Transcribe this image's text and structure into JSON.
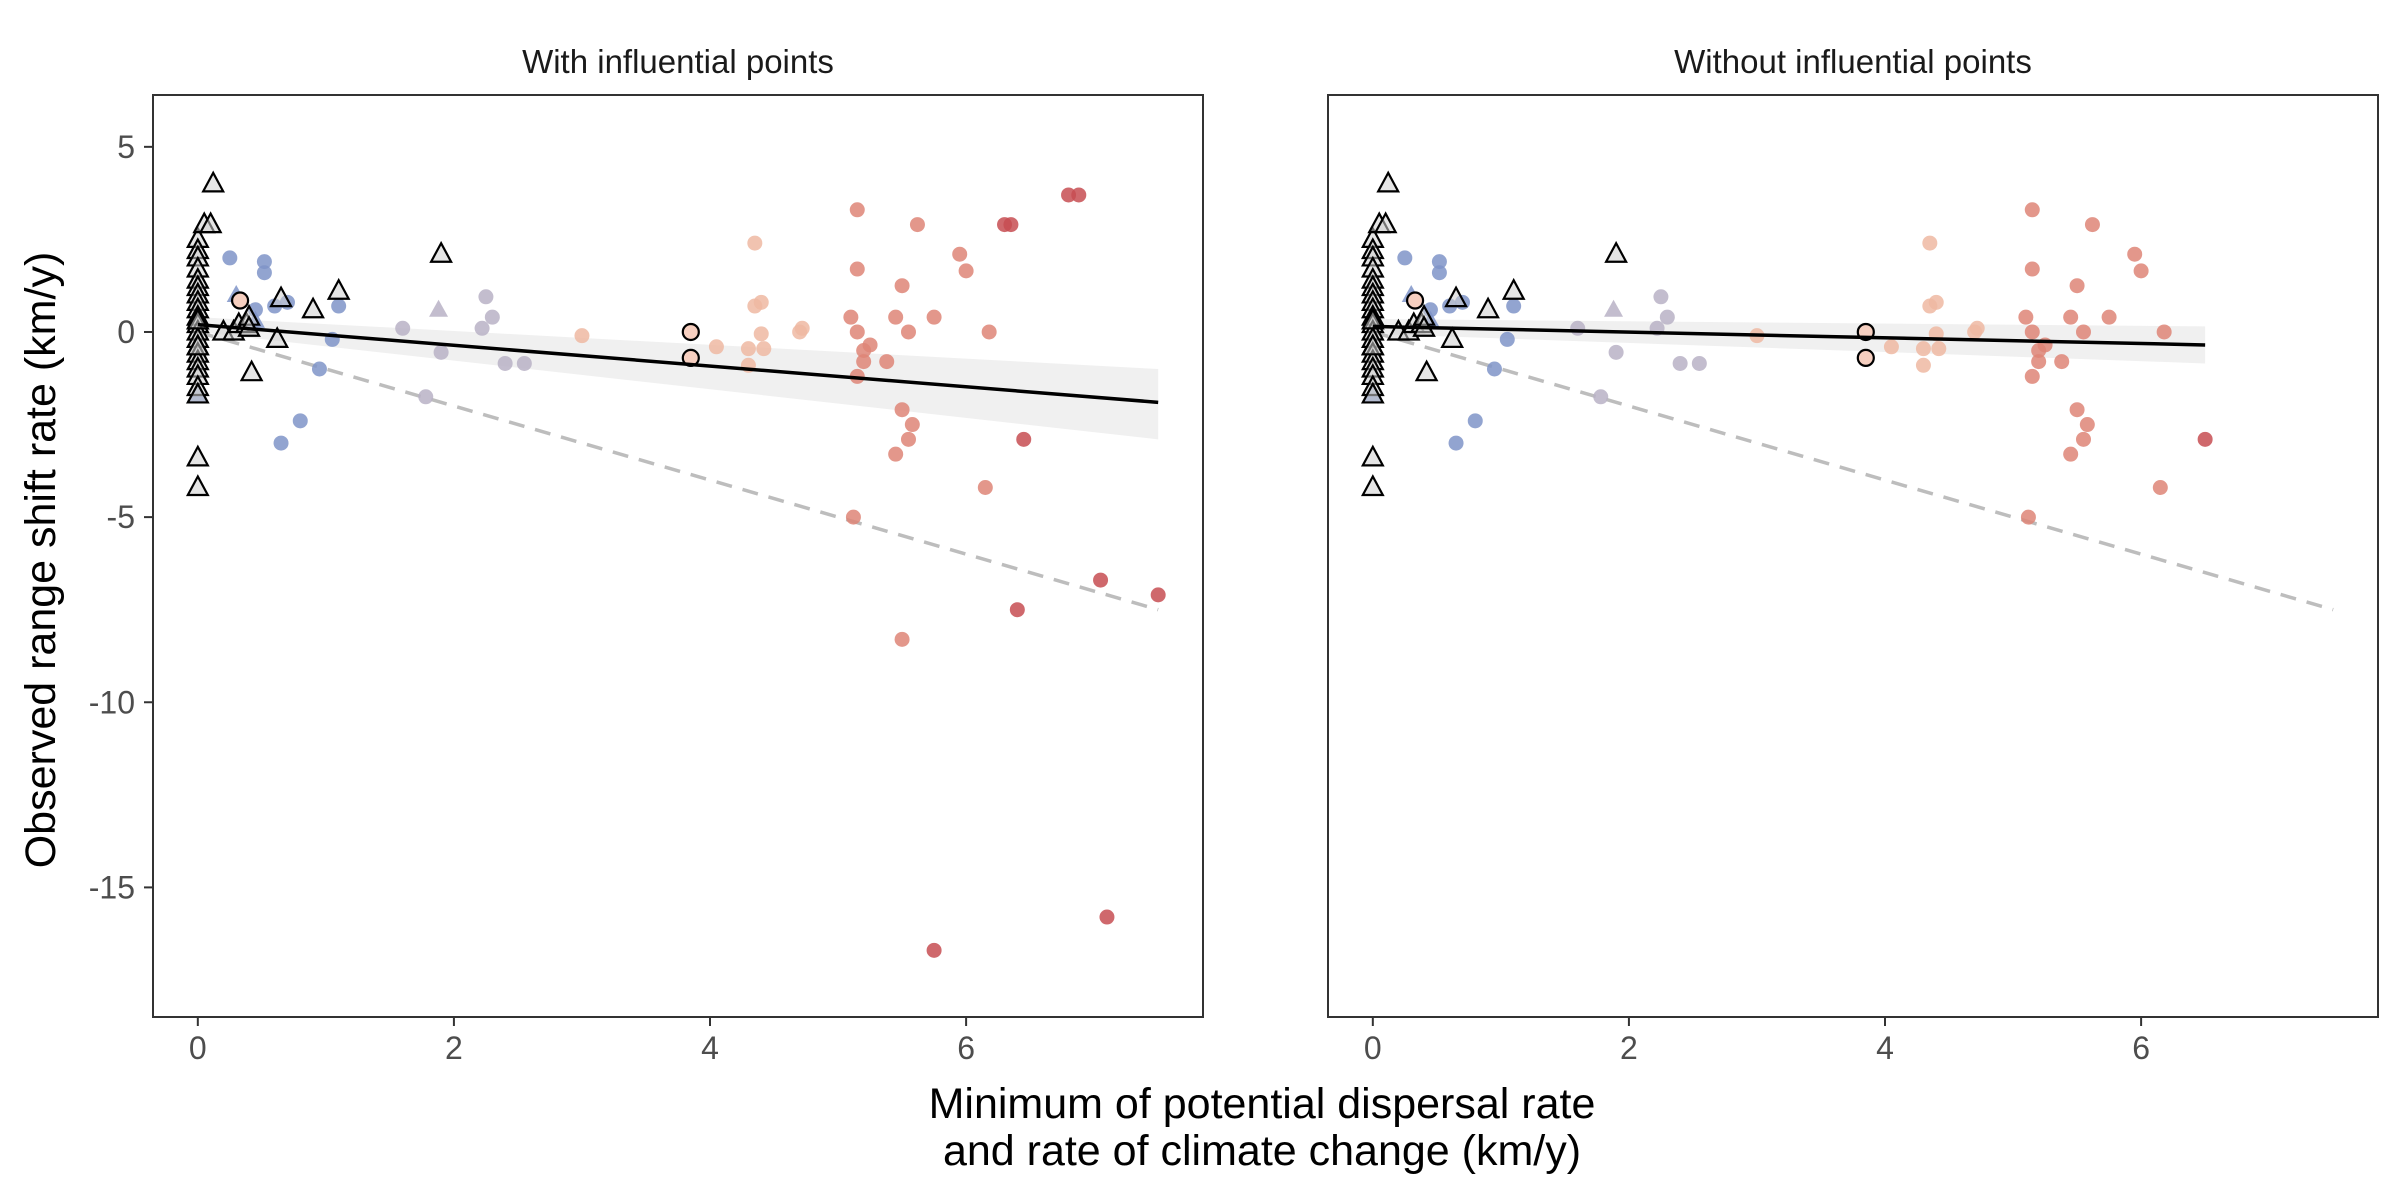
{
  "figure": {
    "ylabel": "Observed range shift rate (km/y)",
    "xlabel_line1": "Minimum of potential dispersal rate",
    "xlabel_line2": "and rate of climate change (km/y)"
  },
  "chart_data": [
    {
      "type": "scatter",
      "title": "With influential points",
      "xlabel": "Minimum of potential dispersal rate and rate of climate change (km/y)",
      "ylabel": "Observed range shift rate (km/y)",
      "xlim": [
        -0.35,
        7.85
      ],
      "ylim": [
        -18.5,
        6.4
      ],
      "xticks": [
        0,
        2,
        4,
        6
      ],
      "yticks": [
        5,
        0,
        -5,
        -10,
        -15
      ],
      "grid": false,
      "colors": {
        "blue": "#7f94c8",
        "grey_purple": "#b9b1c6",
        "peach": "#efb8a2",
        "salmon": "#de8577",
        "red": "#c74d52",
        "outline": "#000000",
        "fit_line": "#000000",
        "ci_band": "#d9d9d9",
        "reference_line": "#bdbdbd"
      },
      "reference_line": {
        "x": [
          0,
          7.5
        ],
        "y": [
          0,
          -7.5
        ],
        "style": "dashed"
      },
      "fit_line": {
        "x": [
          0,
          7.5
        ],
        "y": [
          0.2,
          -1.9
        ]
      },
      "ci_band": {
        "x": [
          0,
          7.5
        ],
        "lower": [
          0.0,
          -2.9
        ],
        "upper": [
          0.4,
          -1.0
        ]
      },
      "series": [
        {
          "marker": "circle",
          "color": "blue",
          "x": [
            0.25,
            0.52,
            0.52,
            0.45,
            0.6,
            0.7,
            1.1,
            0.95,
            1.05,
            0.8,
            0.65
          ],
          "y": [
            2.0,
            1.9,
            1.6,
            0.6,
            0.7,
            0.8,
            0.7,
            -1.0,
            -0.2,
            -2.4,
            -3.0
          ]
        },
        {
          "marker": "triangle",
          "color": "blue",
          "x": [
            0.0,
            0.3,
            0.45
          ],
          "y": [
            -1.7,
            1.0,
            0.3
          ]
        },
        {
          "marker": "circle",
          "color": "grey_purple",
          "x": [
            1.6,
            1.9,
            1.78,
            2.25,
            2.3,
            2.22,
            2.4,
            2.55
          ],
          "y": [
            0.1,
            -0.55,
            -1.75,
            0.95,
            0.4,
            0.1,
            -0.85,
            -0.85
          ]
        },
        {
          "marker": "triangle",
          "color": "grey_purple",
          "x": [
            1.88
          ],
          "y": [
            0.6
          ]
        },
        {
          "marker": "circle",
          "color": "peach",
          "x": [
            3.0,
            4.05,
            4.35,
            4.4,
            4.35,
            4.4,
            4.3,
            4.3,
            4.42,
            4.7,
            4.72
          ],
          "y": [
            -0.1,
            -0.4,
            2.4,
            0.8,
            0.7,
            -0.05,
            -0.45,
            -0.9,
            -0.45,
            0.0,
            0.1
          ]
        },
        {
          "marker": "circle",
          "color": "salmon",
          "x": [
            5.15,
            5.15,
            5.1,
            5.15,
            5.2,
            5.2,
            5.15,
            5.12,
            5.25,
            5.38,
            5.45,
            5.5,
            5.55,
            5.5,
            5.58,
            5.55,
            5.62,
            5.75,
            5.95,
            6.0,
            6.18,
            6.15,
            5.45,
            5.5
          ],
          "y": [
            3.3,
            1.7,
            0.4,
            0.0,
            -0.5,
            -0.8,
            -1.2,
            -5.0,
            -0.35,
            -0.8,
            0.4,
            1.25,
            0.0,
            -2.1,
            -2.5,
            -2.9,
            2.9,
            0.4,
            2.1,
            1.65,
            0.0,
            -4.2,
            -3.3,
            -8.3
          ]
        },
        {
          "marker": "circle",
          "color": "red",
          "x": [
            6.3,
            6.35,
            6.45,
            6.4,
            6.8,
            6.88,
            7.05,
            7.5,
            7.1,
            5.75
          ],
          "y": [
            2.9,
            2.9,
            -2.9,
            -7.5,
            3.7,
            3.7,
            -6.7,
            -7.1,
            -15.8,
            -16.7
          ]
        },
        {
          "marker": "triangle_outlined",
          "color": "outline",
          "x": [
            0.12,
            0.0,
            0.0,
            0.05,
            0.1,
            0.0,
            0.0,
            0.0,
            0.0,
            0.0,
            0.0,
            0.0,
            0.0,
            0.0,
            0.0,
            0.0,
            0.0,
            0.0,
            0.0,
            0.0,
            0.0,
            0.0,
            0.0,
            0.0,
            0.0,
            0.0,
            0.0,
            0.2,
            0.28,
            0.32,
            0.38,
            0.4,
            0.42,
            0.4,
            0.62,
            0.65,
            0.9,
            1.1,
            1.9
          ],
          "y": [
            4.0,
            2.5,
            2.2,
            2.9,
            2.9,
            2.0,
            1.7,
            1.4,
            1.2,
            1.0,
            0.8,
            0.6,
            0.4,
            0.2,
            0.0,
            -0.2,
            -0.4,
            -0.6,
            -0.8,
            -1.0,
            -1.2,
            -1.5,
            -1.7,
            -3.4,
            -4.2,
            0.3,
            -0.4,
            0.0,
            0.0,
            0.2,
            0.2,
            0.4,
            -1.1,
            0.1,
            -0.2,
            0.9,
            0.6,
            1.1,
            2.1
          ]
        },
        {
          "marker": "circle_outlined",
          "color": "outline",
          "x": [
            0.33,
            3.85,
            3.85
          ],
          "y": [
            0.85,
            0.0,
            -0.7
          ]
        }
      ]
    },
    {
      "type": "scatter",
      "title": "Without influential points",
      "xlabel": "Minimum of potential dispersal rate and rate of climate change (km/y)",
      "ylabel": "Observed range shift rate (km/y)",
      "xlim": [
        -0.35,
        7.85
      ],
      "ylim": [
        -18.5,
        6.4
      ],
      "xticks": [
        0,
        2,
        4,
        6
      ],
      "yticks": [
        5,
        0,
        -5,
        -10,
        -15
      ],
      "grid": false,
      "colors": {
        "blue": "#7f94c8",
        "grey_purple": "#b9b1c6",
        "peach": "#efb8a2",
        "salmon": "#de8577",
        "red": "#c74d52",
        "outline": "#000000",
        "fit_line": "#000000",
        "ci_band": "#d9d9d9",
        "reference_line": "#bdbdbd"
      },
      "reference_line": {
        "x": [
          0,
          7.5
        ],
        "y": [
          0,
          -7.5
        ],
        "style": "dashed"
      },
      "fit_line": {
        "x": [
          0,
          6.5
        ],
        "y": [
          0.15,
          -0.35
        ]
      },
      "ci_band": {
        "x": [
          0,
          6.5
        ],
        "lower": [
          -0.05,
          -0.85
        ],
        "upper": [
          0.35,
          0.15
        ]
      },
      "series": [
        {
          "marker": "circle",
          "color": "blue",
          "x": [
            0.25,
            0.52,
            0.52,
            0.45,
            0.6,
            0.7,
            1.1,
            0.95,
            1.05,
            0.8,
            0.65
          ],
          "y": [
            2.0,
            1.9,
            1.6,
            0.6,
            0.7,
            0.8,
            0.7,
            -1.0,
            -0.2,
            -2.4,
            -3.0
          ]
        },
        {
          "marker": "triangle",
          "color": "blue",
          "x": [
            0.0,
            0.3,
            0.45
          ],
          "y": [
            -1.7,
            1.0,
            0.3
          ]
        },
        {
          "marker": "circle",
          "color": "grey_purple",
          "x": [
            1.6,
            1.9,
            1.78,
            2.25,
            2.3,
            2.22,
            2.4,
            2.55
          ],
          "y": [
            0.1,
            -0.55,
            -1.75,
            0.95,
            0.4,
            0.1,
            -0.85,
            -0.85
          ]
        },
        {
          "marker": "triangle",
          "color": "grey_purple",
          "x": [
            1.88
          ],
          "y": [
            0.6
          ]
        },
        {
          "marker": "circle",
          "color": "peach",
          "x": [
            3.0,
            4.05,
            4.35,
            4.4,
            4.35,
            4.4,
            4.3,
            4.3,
            4.42,
            4.7,
            4.72
          ],
          "y": [
            -0.1,
            -0.4,
            2.4,
            0.8,
            0.7,
            -0.05,
            -0.45,
            -0.9,
            -0.45,
            0.0,
            0.1
          ]
        },
        {
          "marker": "circle",
          "color": "salmon",
          "x": [
            5.15,
            5.15,
            5.1,
            5.15,
            5.2,
            5.2,
            5.15,
            5.12,
            5.25,
            5.38,
            5.45,
            5.5,
            5.55,
            5.5,
            5.58,
            5.55,
            5.62,
            5.75,
            5.95,
            6.0,
            6.18,
            6.15,
            5.45
          ],
          "y": [
            3.3,
            1.7,
            0.4,
            0.0,
            -0.5,
            -0.8,
            -1.2,
            -5.0,
            -0.35,
            -0.8,
            0.4,
            1.25,
            0.0,
            -2.1,
            -2.5,
            -2.9,
            2.9,
            0.4,
            2.1,
            1.65,
            0.0,
            -4.2,
            -3.3
          ]
        },
        {
          "marker": "circle",
          "color": "red",
          "x": [
            6.5
          ],
          "y": [
            -2.9
          ]
        },
        {
          "marker": "triangle_outlined",
          "color": "outline",
          "x": [
            0.12,
            0.0,
            0.0,
            0.05,
            0.1,
            0.0,
            0.0,
            0.0,
            0.0,
            0.0,
            0.0,
            0.0,
            0.0,
            0.0,
            0.0,
            0.0,
            0.0,
            0.0,
            0.0,
            0.0,
            0.0,
            0.0,
            0.0,
            0.0,
            0.0,
            0.0,
            0.0,
            0.2,
            0.28,
            0.32,
            0.38,
            0.4,
            0.42,
            0.4,
            0.62,
            0.65,
            0.9,
            1.1,
            1.9
          ],
          "y": [
            4.0,
            2.5,
            2.2,
            2.9,
            2.9,
            2.0,
            1.7,
            1.4,
            1.2,
            1.0,
            0.8,
            0.6,
            0.4,
            0.2,
            0.0,
            -0.2,
            -0.4,
            -0.6,
            -0.8,
            -1.0,
            -1.2,
            -1.5,
            -1.7,
            -3.4,
            -4.2,
            0.3,
            -0.4,
            0.0,
            0.0,
            0.2,
            0.2,
            0.4,
            -1.1,
            0.1,
            -0.2,
            0.9,
            0.6,
            1.1,
            2.1
          ]
        },
        {
          "marker": "circle_outlined",
          "color": "outline",
          "x": [
            0.33,
            3.85,
            3.85
          ],
          "y": [
            0.85,
            0.0,
            -0.7
          ]
        }
      ]
    }
  ]
}
